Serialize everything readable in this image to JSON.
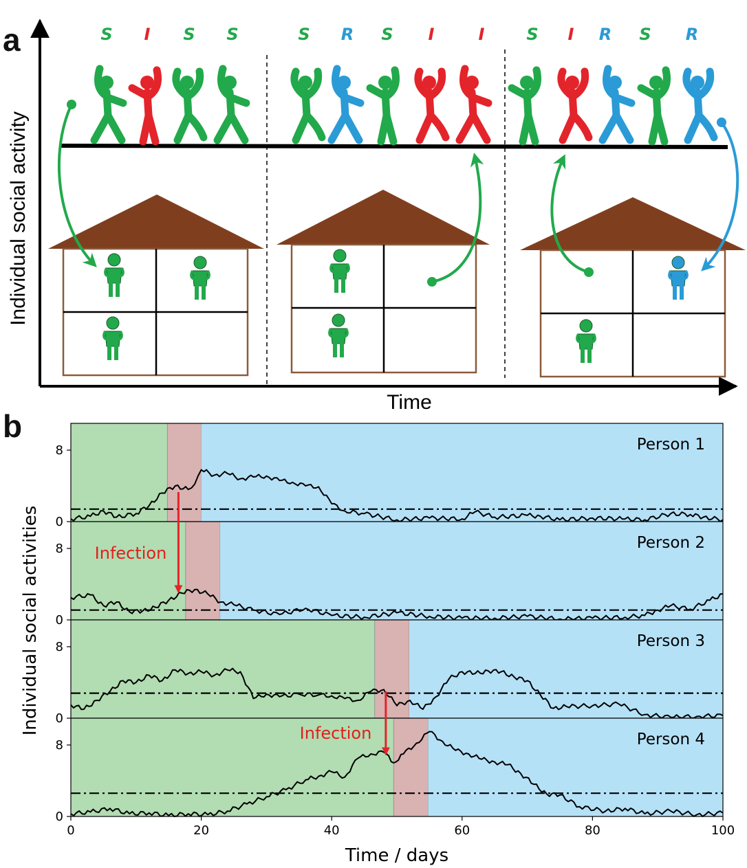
{
  "colors": {
    "susceptible": "#22a94b",
    "infected": "#e3242b",
    "recovered": "#2a9bd6",
    "house_roof": "#7f3f1f",
    "house_wall": "#8b5a3c",
    "shade_s": "#b2dcb2",
    "shade_i": "#d9b2b2",
    "shade_r": "#b5e1f7"
  },
  "panel_a": {
    "letter": "a",
    "y_axis_title": "Individual  social activity",
    "x_axis_title": "Time",
    "groups": [
      {
        "states": [
          "S",
          "I",
          "S",
          "S"
        ]
      },
      {
        "states": [
          "S",
          "R",
          "S",
          "I",
          "I"
        ]
      },
      {
        "states": [
          "S",
          "I",
          "R",
          "S",
          "R"
        ]
      }
    ],
    "icons": {
      "dancer": "dancing-person-icon",
      "home_person": "standing-person-icon",
      "house": "house-icon"
    }
  },
  "panel_b": {
    "letter": "b",
    "y_axis_title": "Individual social activities",
    "x_axis_title": "Time / days",
    "x_ticks": [
      0,
      20,
      40,
      60,
      80,
      100
    ],
    "y_ticks": [
      0,
      8
    ],
    "infection_label": "Infection",
    "persons": [
      {
        "label": "Person 1",
        "infected_start": 14.8,
        "recovered_start": 20.0,
        "threshold": 1.4
      },
      {
        "label": "Person 2",
        "infected_start": 17.6,
        "recovered_start": 22.9,
        "threshold": 1.1
      },
      {
        "label": "Person 3",
        "infected_start": 46.6,
        "recovered_start": 51.9,
        "threshold": 2.8
      },
      {
        "label": "Person 4",
        "infected_start": 49.5,
        "recovered_start": 54.8,
        "threshold": 2.6
      }
    ],
    "infections": [
      {
        "from_person": 1,
        "to_person": 2,
        "day": 16.5
      },
      {
        "from_person": 3,
        "to_person": 4,
        "day": 48.3
      }
    ]
  },
  "chart_data": {
    "type": "line",
    "xlabel": "Time / days",
    "ylabel": "Individual social activities",
    "xlim": [
      0,
      100
    ],
    "ylim": [
      0,
      11
    ],
    "series": [
      {
        "name": "Person 1",
        "x": [
          0,
          3,
          5,
          7,
          10,
          12,
          14,
          16,
          18,
          19,
          20,
          22,
          24,
          26,
          28,
          30,
          32,
          34,
          36,
          38,
          40,
          42,
          45,
          50,
          55,
          60,
          62,
          65,
          70,
          72,
          75,
          80,
          85,
          88,
          92,
          95,
          97,
          100
        ],
        "values": [
          0.3,
          0.6,
          1.2,
          0.5,
          0.9,
          1.8,
          3.2,
          4.0,
          3.6,
          4.2,
          5.8,
          5.2,
          5.4,
          4.8,
          5.0,
          5.1,
          4.6,
          4.4,
          4.0,
          3.9,
          2.0,
          1.2,
          0.9,
          0.2,
          0.4,
          0.3,
          1.1,
          0.5,
          0.7,
          0.6,
          0.2,
          0.4,
          0.3,
          0.2,
          0.9,
          0.8,
          0.5,
          0.2
        ]
      },
      {
        "name": "Person 2",
        "x": [
          0,
          3,
          5,
          7,
          9,
          11,
          13,
          15,
          17,
          19,
          21,
          23,
          25,
          28,
          32,
          36,
          40,
          45,
          50,
          55,
          60,
          65,
          70,
          75,
          80,
          85,
          88,
          90,
          92,
          95,
          98,
          100
        ],
        "values": [
          2.5,
          2.8,
          1.6,
          2.0,
          0.9,
          1.0,
          1.4,
          2.2,
          3.0,
          3.4,
          2.9,
          2.0,
          1.7,
          1.1,
          0.6,
          1.3,
          0.5,
          0.3,
          0.8,
          0.4,
          0.2,
          0.2,
          0.4,
          0.1,
          0.2,
          0.3,
          0.5,
          1.1,
          1.6,
          1.2,
          2.2,
          2.9
        ]
      },
      {
        "name": "Person 3",
        "x": [
          0,
          2,
          4,
          6,
          8,
          10,
          12,
          14,
          16,
          18,
          20,
          22,
          24,
          26,
          28,
          30,
          32,
          35,
          38,
          40,
          42,
          44,
          46,
          48,
          50,
          52,
          54,
          56,
          58,
          60,
          62,
          64,
          66,
          68,
          70,
          72,
          74,
          76,
          80,
          84,
          88,
          92,
          96,
          100
        ],
        "values": [
          1.5,
          1.0,
          2.0,
          3.0,
          4.2,
          4.0,
          4.8,
          4.2,
          5.4,
          5.0,
          5.2,
          4.8,
          5.4,
          5.2,
          2.2,
          2.7,
          2.4,
          2.7,
          2.6,
          2.5,
          2.2,
          2.0,
          3.0,
          3.2,
          1.4,
          2.0,
          1.0,
          2.4,
          4.4,
          5.2,
          5.0,
          5.3,
          5.2,
          4.6,
          4.2,
          2.6,
          1.1,
          1.3,
          1.4,
          1.6,
          0.4,
          0.1,
          0.2,
          0.3
        ]
      },
      {
        "name": "Person 4",
        "x": [
          0,
          3,
          6,
          9,
          12,
          15,
          18,
          21,
          24,
          27,
          30,
          33,
          36,
          38,
          40,
          42,
          44,
          46,
          48,
          49.5,
          51,
          53,
          55,
          57,
          59,
          61,
          63,
          65,
          67,
          69,
          71,
          73,
          75,
          78,
          82,
          85,
          88,
          92,
          96,
          100
        ],
        "values": [
          0.3,
          0.5,
          0.9,
          0.3,
          0.4,
          0.1,
          0.3,
          0.2,
          0.6,
          1.4,
          2.2,
          3.0,
          4.1,
          4.5,
          5.0,
          4.4,
          6.5,
          7.0,
          7.2,
          6.0,
          7.0,
          8.2,
          9.5,
          8.4,
          7.4,
          7.0,
          6.4,
          6.1,
          5.8,
          4.8,
          3.6,
          2.5,
          2.4,
          1.1,
          0.6,
          0.9,
          0.3,
          0.6,
          0.2,
          0.4
        ]
      }
    ]
  }
}
